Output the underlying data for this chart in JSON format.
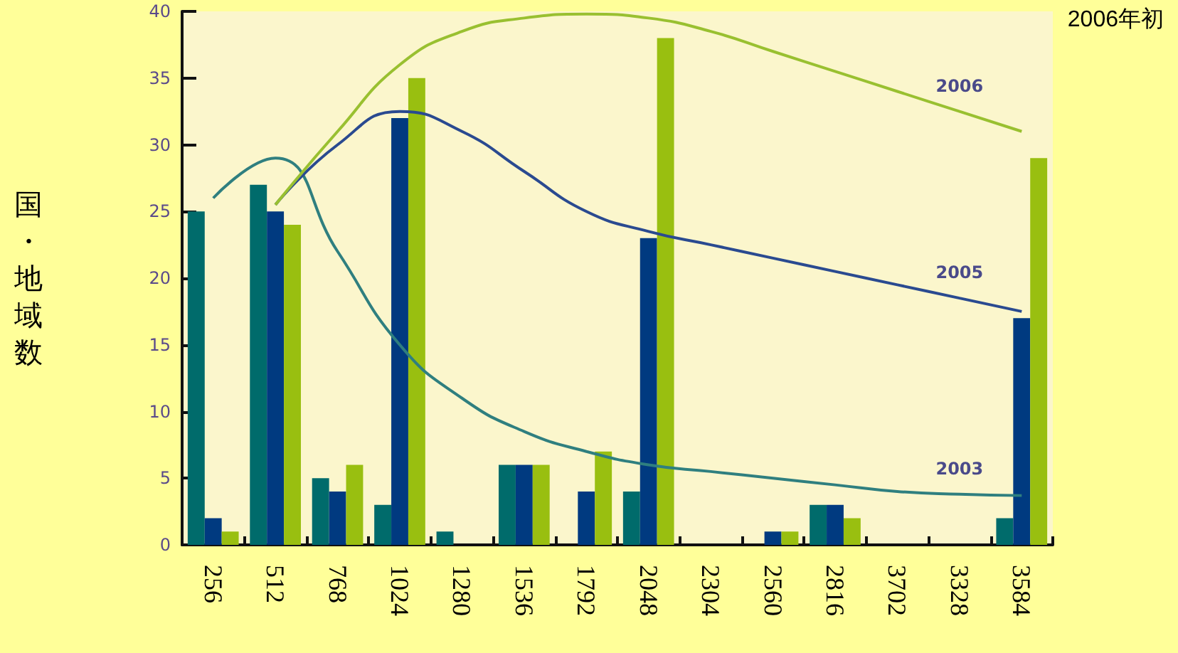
{
  "chart_data": {
    "type": "bar",
    "ylabel": "国・地域数",
    "categories": [
      "256",
      "512",
      "768",
      "1024",
      "1280",
      "1536",
      "1792",
      "2048",
      "2304",
      "2560",
      "2816",
      "3702",
      "3328",
      "3584"
    ],
    "series": [
      {
        "color": "#006b6b",
        "values": [
          25,
          27,
          5,
          3,
          1,
          6,
          0,
          4,
          0,
          0,
          3,
          0,
          0,
          2
        ]
      },
      {
        "color": "#003a80",
        "values": [
          2,
          25,
          4,
          32,
          0,
          6,
          4,
          23,
          0,
          1,
          3,
          0,
          0,
          17
        ]
      },
      {
        "color": "#99bf10",
        "values": [
          1,
          24,
          6,
          35,
          0,
          6,
          7,
          38,
          0,
          1,
          2,
          0,
          0,
          29
        ]
      },
      {
        "type": "line",
        "name": "2003",
        "color": "#2f7f7f",
        "values": [
          26,
          29,
          22,
          15,
          11,
          8.5,
          7,
          6,
          5.5,
          5,
          4.5,
          4,
          3.8,
          3.7
        ]
      },
      {
        "type": "line",
        "name": "2005",
        "color": "#2a4a90",
        "values": [
          null,
          25.5,
          30,
          32.5,
          31,
          28,
          25,
          23.5,
          22.5,
          21.5,
          20.5,
          19.5,
          18.5,
          17.5
        ]
      },
      {
        "type": "line",
        "name": "2006",
        "color": "#99c030",
        "values": [
          null,
          25.5,
          31,
          36,
          38.5,
          39.5,
          39.8,
          39.5,
          38.5,
          37,
          35.5,
          34,
          32.5,
          31
        ]
      }
    ],
    "ylim": [
      0,
      40
    ],
    "yticks": [
      0,
      5,
      10,
      15,
      20,
      25,
      30,
      35,
      40
    ],
    "annotations": [
      "2006年初"
    ],
    "legend": false,
    "grid": false
  }
}
